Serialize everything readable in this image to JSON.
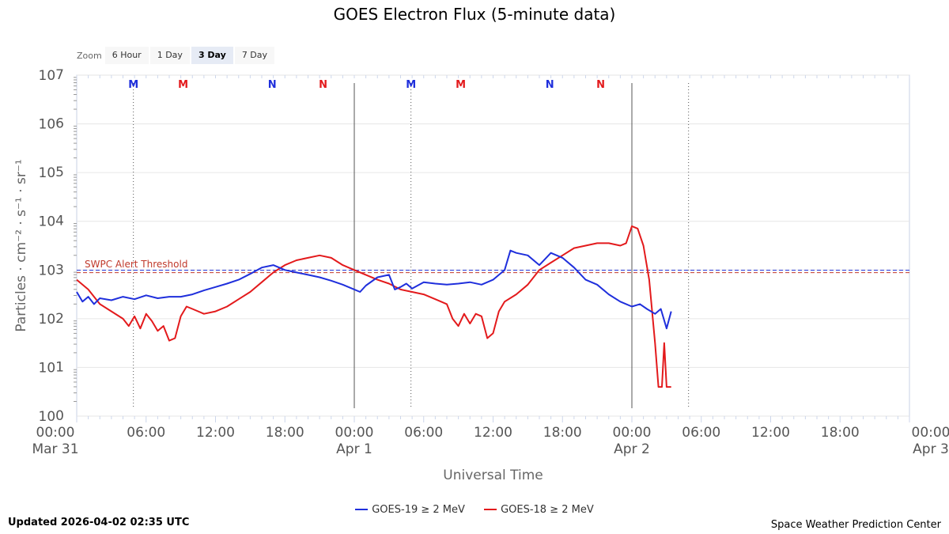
{
  "title": "GOES Electron Flux (5-minute data)",
  "zoom": {
    "label": "Zoom",
    "buttons": [
      "6 Hour",
      "1 Day",
      "3 Day",
      "7 Day"
    ],
    "active": "3 Day"
  },
  "updated": "Updated 2026-04-02 02:35 UTC",
  "credit": "Space Weather Prediction Center",
  "legend": [
    {
      "name": "GOES-19 ≥ 2 MeV",
      "color": "#1f2fdc"
    },
    {
      "name": "GOES-18 ≥ 2 MeV",
      "color": "#e31a1c"
    }
  ],
  "chart_data": {
    "type": "line",
    "title": "GOES Electron Flux (5-minute data)",
    "xlabel": "Universal Time",
    "ylabel": "Particles · cm⁻² · s⁻¹ · sr⁻¹",
    "y_scale": "log",
    "ylim_exponent": [
      0,
      7
    ],
    "y_tick_base": "10",
    "y_ticks": [
      "0",
      "1",
      "2",
      "3",
      "4",
      "5",
      "6",
      "7"
    ],
    "xlim_hours": [
      0,
      72
    ],
    "x_ticks": [
      {
        "time": "00:00",
        "date": "Mar 31"
      },
      {
        "time": "06:00",
        "date": ""
      },
      {
        "time": "12:00",
        "date": ""
      },
      {
        "time": "18:00",
        "date": ""
      },
      {
        "time": "00:00",
        "date": "Apr 1"
      },
      {
        "time": "06:00",
        "date": ""
      },
      {
        "time": "12:00",
        "date": ""
      },
      {
        "time": "18:00",
        "date": ""
      },
      {
        "time": "00:00",
        "date": "Apr 2"
      },
      {
        "time": "06:00",
        "date": ""
      },
      {
        "time": "12:00",
        "date": ""
      },
      {
        "time": "18:00",
        "date": ""
      },
      {
        "time": "00:00",
        "date": "Apr 3"
      }
    ],
    "threshold": {
      "label": "SWPC Alert Threshold",
      "value_exponent": 2.97
    },
    "day_boundaries_hours": [
      24,
      48
    ],
    "noon_midnight_markers": [
      {
        "label": "M",
        "hour": 4.9,
        "series": "GOES-19 ≥ 2 MeV",
        "color": "#1f2fdc"
      },
      {
        "label": "M",
        "hour": 9.2,
        "series": "GOES-18 ≥ 2 MeV",
        "color": "#e31a1c"
      },
      {
        "label": "N",
        "hour": 16.9,
        "series": "GOES-19 ≥ 2 MeV",
        "color": "#1f2fdc"
      },
      {
        "label": "N",
        "hour": 21.3,
        "series": "GOES-18 ≥ 2 MeV",
        "color": "#e31a1c"
      },
      {
        "label": "M",
        "hour": 28.9,
        "series": "GOES-19 ≥ 2 MeV",
        "color": "#1f2fdc"
      },
      {
        "label": "M",
        "hour": 33.2,
        "series": "GOES-18 ≥ 2 MeV",
        "color": "#e31a1c"
      },
      {
        "label": "N",
        "hour": 40.9,
        "series": "GOES-19 ≥ 2 MeV",
        "color": "#1f2fdc"
      },
      {
        "label": "N",
        "hour": 45.3,
        "series": "GOES-18 ≥ 2 MeV",
        "color": "#e31a1c"
      }
    ],
    "dotted_markers_hours": [
      4.9,
      28.9,
      52.9
    ],
    "series": [
      {
        "name": "GOES-19 ≥ 2 MeV",
        "color": "#1f2fdc",
        "points": [
          [
            0,
            2.55
          ],
          [
            0.5,
            2.35
          ],
          [
            1,
            2.45
          ],
          [
            1.5,
            2.3
          ],
          [
            2,
            2.42
          ],
          [
            3,
            2.38
          ],
          [
            4,
            2.45
          ],
          [
            5,
            2.4
          ],
          [
            6,
            2.48
          ],
          [
            7,
            2.42
          ],
          [
            8,
            2.45
          ],
          [
            9,
            2.45
          ],
          [
            10,
            2.5
          ],
          [
            11,
            2.58
          ],
          [
            12,
            2.65
          ],
          [
            13,
            2.72
          ],
          [
            14,
            2.8
          ],
          [
            15,
            2.92
          ],
          [
            16,
            3.05
          ],
          [
            17,
            3.1
          ],
          [
            18,
            3.0
          ],
          [
            19,
            2.95
          ],
          [
            20,
            2.9
          ],
          [
            21,
            2.85
          ],
          [
            22,
            2.78
          ],
          [
            23,
            2.7
          ],
          [
            24,
            2.6
          ],
          [
            24.5,
            2.55
          ],
          [
            25,
            2.68
          ],
          [
            26,
            2.85
          ],
          [
            27,
            2.9
          ],
          [
            27.5,
            2.6
          ],
          [
            28,
            2.65
          ],
          [
            28.5,
            2.72
          ],
          [
            29,
            2.62
          ],
          [
            30,
            2.75
          ],
          [
            31,
            2.72
          ],
          [
            32,
            2.7
          ],
          [
            33,
            2.72
          ],
          [
            34,
            2.75
          ],
          [
            35,
            2.7
          ],
          [
            36,
            2.8
          ],
          [
            37,
            3.0
          ],
          [
            37.5,
            3.4
          ],
          [
            38,
            3.35
          ],
          [
            39,
            3.3
          ],
          [
            40,
            3.1
          ],
          [
            41,
            3.35
          ],
          [
            42,
            3.25
          ],
          [
            43,
            3.05
          ],
          [
            44,
            2.8
          ],
          [
            45,
            2.7
          ],
          [
            46,
            2.5
          ],
          [
            47,
            2.35
          ],
          [
            48,
            2.25
          ],
          [
            48.7,
            2.3
          ],
          [
            49.3,
            2.2
          ],
          [
            50.0,
            2.1
          ],
          [
            50.5,
            2.2
          ],
          [
            51,
            1.8
          ],
          [
            51.4,
            2.15
          ]
        ]
      },
      {
        "name": "GOES-18 ≥ 2 MeV",
        "color": "#e31a1c",
        "points": [
          [
            0,
            2.8
          ],
          [
            1,
            2.6
          ],
          [
            2,
            2.3
          ],
          [
            3,
            2.15
          ],
          [
            4,
            2.0
          ],
          [
            4.5,
            1.85
          ],
          [
            5,
            2.05
          ],
          [
            5.5,
            1.8
          ],
          [
            6,
            2.1
          ],
          [
            6.5,
            1.95
          ],
          [
            7,
            1.75
          ],
          [
            7.5,
            1.85
          ],
          [
            8,
            1.55
          ],
          [
            8.5,
            1.6
          ],
          [
            9,
            2.05
          ],
          [
            9.5,
            2.25
          ],
          [
            10,
            2.2
          ],
          [
            11,
            2.1
          ],
          [
            12,
            2.15
          ],
          [
            13,
            2.25
          ],
          [
            14,
            2.4
          ],
          [
            15,
            2.55
          ],
          [
            16,
            2.75
          ],
          [
            17,
            2.95
          ],
          [
            18,
            3.1
          ],
          [
            19,
            3.2
          ],
          [
            20,
            3.25
          ],
          [
            21,
            3.3
          ],
          [
            22,
            3.25
          ],
          [
            23,
            3.1
          ],
          [
            24,
            3.0
          ],
          [
            25,
            2.9
          ],
          [
            26,
            2.8
          ],
          [
            27,
            2.72
          ],
          [
            28,
            2.6
          ],
          [
            29,
            2.55
          ],
          [
            30,
            2.5
          ],
          [
            31,
            2.4
          ],
          [
            32,
            2.3
          ],
          [
            32.5,
            2.0
          ],
          [
            33,
            1.85
          ],
          [
            33.5,
            2.1
          ],
          [
            34,
            1.9
          ],
          [
            34.5,
            2.1
          ],
          [
            35,
            2.05
          ],
          [
            35.5,
            1.6
          ],
          [
            36,
            1.7
          ],
          [
            36.5,
            2.15
          ],
          [
            37,
            2.35
          ],
          [
            38,
            2.5
          ],
          [
            39,
            2.7
          ],
          [
            40,
            3.0
          ],
          [
            41,
            3.15
          ],
          [
            42,
            3.3
          ],
          [
            43,
            3.45
          ],
          [
            44,
            3.5
          ],
          [
            45,
            3.55
          ],
          [
            46,
            3.55
          ],
          [
            47,
            3.5
          ],
          [
            47.5,
            3.55
          ],
          [
            48,
            3.9
          ],
          [
            48.5,
            3.85
          ],
          [
            49,
            3.5
          ],
          [
            49.5,
            2.8
          ],
          [
            50,
            1.5
          ],
          [
            50.3,
            0.6
          ],
          [
            50.6,
            0.6
          ],
          [
            50.8,
            1.5
          ],
          [
            51,
            0.6
          ],
          [
            51.4,
            0.6
          ]
        ]
      }
    ]
  }
}
